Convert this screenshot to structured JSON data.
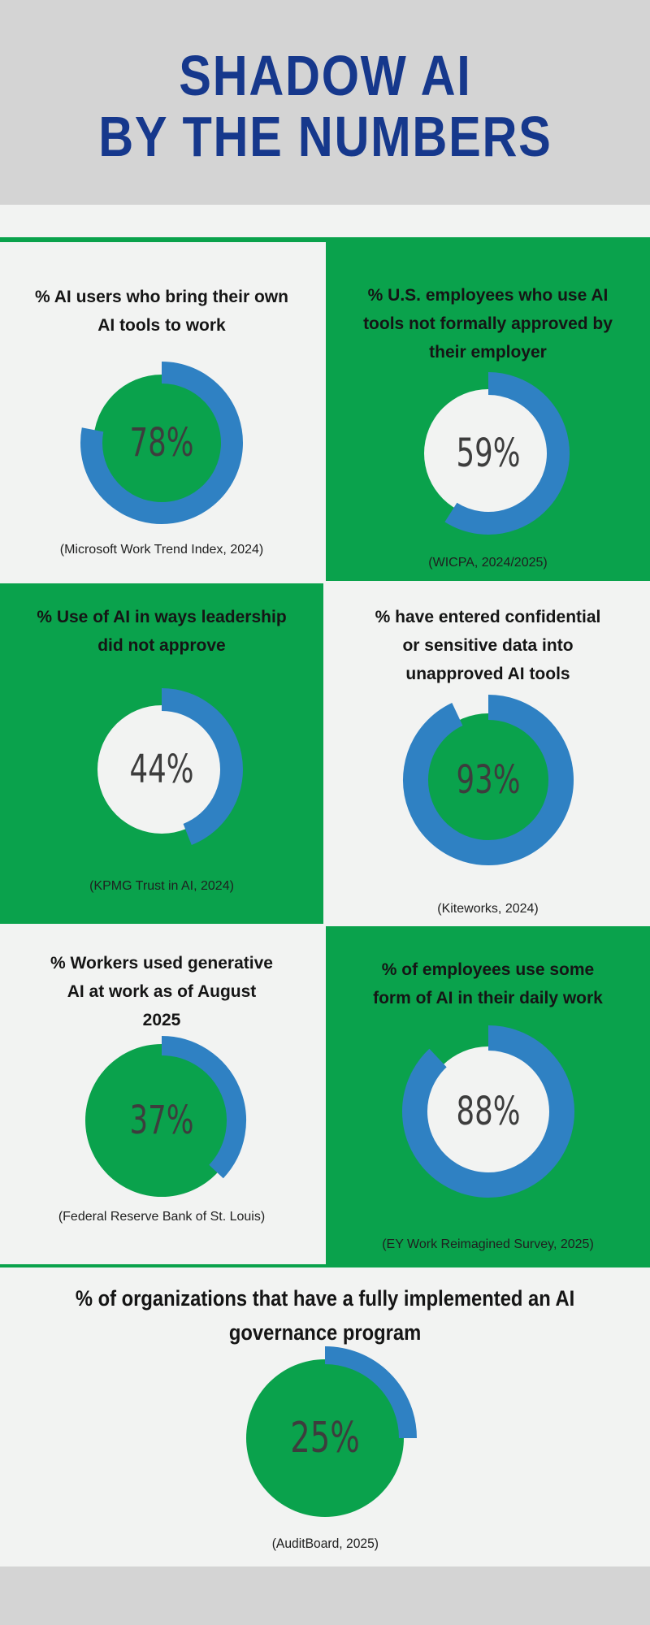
{
  "header": {
    "title": "SHADOW AI\nBY THE NUMBERS"
  },
  "colors": {
    "green": "#0aa24c",
    "blue": "#2f81c3",
    "navy": "#16388c",
    "circle_light": "#f2f3f2",
    "header_gray": "#d4d4d4",
    "percent_gray": "#3d3d3d"
  },
  "cards": [
    {
      "title": "% AI users who bring their own\nAI tools to work",
      "percent_label": "78%",
      "source": "(Microsoft Work Trend Index, 2024)",
      "bg": "light",
      "donut": {
        "percent": 78,
        "size": 210,
        "inner_r": 84,
        "ring_outer": 100,
        "ring_inner": 73,
        "inner": "green"
      }
    },
    {
      "title": "% U.S. employees who use AI\ntools not formally approved by\ntheir employer",
      "percent_label": "59%",
      "source": "(WICPA, 2024/2025)",
      "bg": "green",
      "donut": {
        "percent": 59,
        "size": 210,
        "inner_r": 79,
        "ring_outer": 100,
        "ring_inner": 72,
        "inner": "light"
      }
    },
    {
      "title": "% Use of AI in ways leadership\ndid not approve",
      "percent_label": "44%",
      "source": "(KPMG Trust in AI, 2024)",
      "bg": "green",
      "donut": {
        "percent": 44,
        "size": 210,
        "inner_r": 79,
        "ring_outer": 100,
        "ring_inner": 72,
        "inner": "light"
      }
    },
    {
      "title": "% have entered confidential\nor sensitive data into\nunapproved AI tools",
      "percent_label": "93%",
      "source": "(Kiteworks, 2024)",
      "bg": "light",
      "donut": {
        "percent": 93,
        "size": 214,
        "inner_r": 82,
        "ring_outer": 105,
        "ring_inner": 74,
        "inner": "green"
      }
    },
    {
      "title": "% Workers used generative\nAI at work as of August\n2025",
      "percent_label": "37%",
      "source": "(Federal Reserve Bank of St. Louis)",
      "bg": "light",
      "donut": {
        "percent": 37,
        "size": 212,
        "inner_r": 94,
        "ring_outer": 104,
        "ring_inner": 80,
        "inner": "green"
      }
    },
    {
      "title": "% of employees use some\nform of AI in their daily work",
      "percent_label": "88%",
      "source": "(EY Work Reimagined Survey, 2025)",
      "bg": "green",
      "donut": {
        "percent": 88,
        "size": 216,
        "inner_r": 80,
        "ring_outer": 106,
        "ring_inner": 75,
        "inner": "light"
      }
    },
    {
      "title": "% of organizations that have a fully implemented an AI\ngovernance program",
      "percent_label": "25%",
      "source": "(AuditBoard, 2025)",
      "bg": "light",
      "donut": {
        "percent": 25,
        "size": 240,
        "inner_r": 97,
        "ring_outer": 113,
        "ring_inner": 91,
        "inner": "green"
      }
    }
  ],
  "chart_data": {
    "type": "pie",
    "style": "donut",
    "unit": "%",
    "ring_color": "#2f81c3",
    "series": [
      {
        "label": "% AI users who bring their own AI tools to work",
        "value": 78,
        "source": "(Microsoft Work Trend Index, 2024)"
      },
      {
        "label": "% U.S. employees who use AI tools not formally approved by their employer",
        "value": 59,
        "source": "(WICPA, 2024/2025)"
      },
      {
        "label": "% Use of AI in ways leadership did not approve",
        "value": 44,
        "source": "(KPMG Trust in AI, 2024)"
      },
      {
        "label": "% have entered confidential or sensitive data into unapproved AI tools",
        "value": 93,
        "source": "(Kiteworks, 2024)"
      },
      {
        "label": "% Workers used generative AI at work as of August 2025",
        "value": 37,
        "source": "(Federal Reserve Bank of St. Louis)"
      },
      {
        "label": "% of employees use some form of AI in their daily work",
        "value": 88,
        "source": "(EY Work Reimagined Survey, 2025)"
      },
      {
        "label": "% of organizations that have a fully implemented an AI governance program",
        "value": 25,
        "source": "(AuditBoard, 2025)"
      }
    ]
  }
}
